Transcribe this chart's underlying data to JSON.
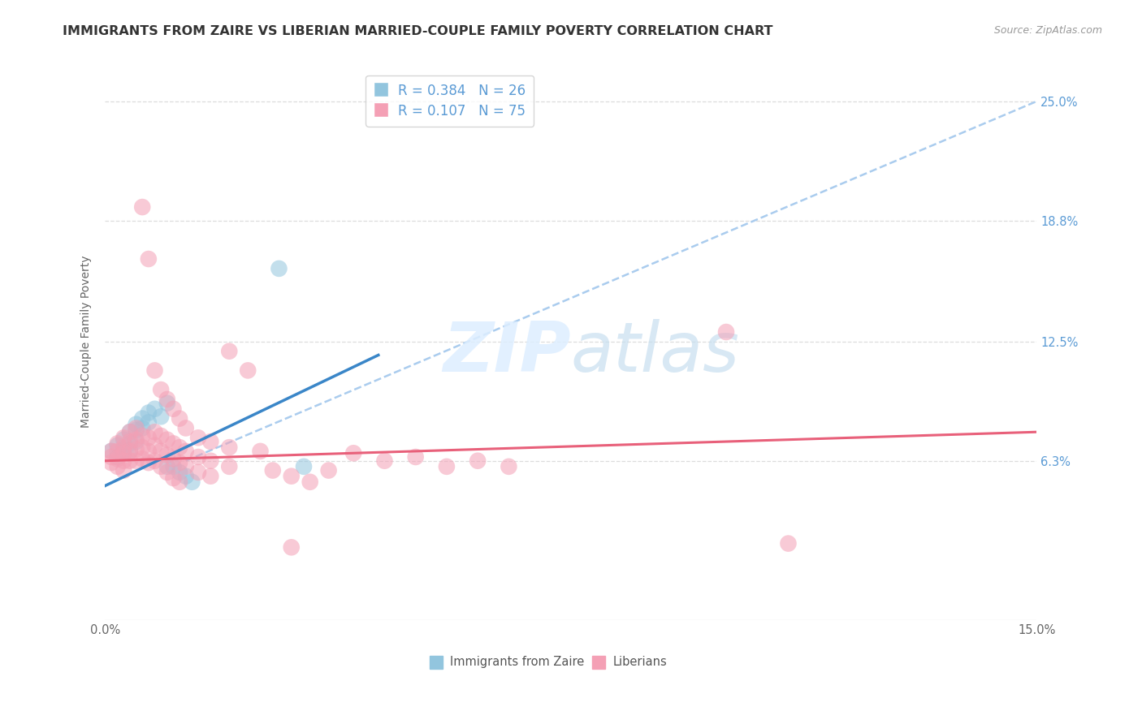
{
  "title": "IMMIGRANTS FROM ZAIRE VS LIBERIAN MARRIED-COUPLE FAMILY POVERTY CORRELATION CHART",
  "source": "Source: ZipAtlas.com",
  "ylabel": "Married-Couple Family Poverty",
  "ytick_labels": [
    "25.0%",
    "18.8%",
    "12.5%",
    "6.3%"
  ],
  "ytick_values": [
    0.25,
    0.188,
    0.125,
    0.063
  ],
  "xlim": [
    0.0,
    0.15
  ],
  "ylim": [
    -0.02,
    0.27
  ],
  "legend_r1": "R = 0.384",
  "legend_n1": "N = 26",
  "legend_r2": "R = 0.107",
  "legend_n2": "N = 75",
  "zaire_color": "#92c5de",
  "liberian_color": "#f4a0b5",
  "zaire_line_color": "#3a86c8",
  "liberian_line_color": "#e8607a",
  "dashed_line_color": "#aaccee",
  "watermark_color": "#ddeeff",
  "right_tick_color": "#5b9bd5",
  "grid_color": "#dddddd",
  "background_color": "#ffffff",
  "zaire_scatter": [
    [
      0.001,
      0.068
    ],
    [
      0.002,
      0.071
    ],
    [
      0.002,
      0.065
    ],
    [
      0.003,
      0.074
    ],
    [
      0.003,
      0.069
    ],
    [
      0.003,
      0.067
    ],
    [
      0.004,
      0.078
    ],
    [
      0.004,
      0.072
    ],
    [
      0.004,
      0.068
    ],
    [
      0.005,
      0.082
    ],
    [
      0.005,
      0.079
    ],
    [
      0.005,
      0.073
    ],
    [
      0.006,
      0.085
    ],
    [
      0.006,
      0.08
    ],
    [
      0.007,
      0.088
    ],
    [
      0.007,
      0.083
    ],
    [
      0.008,
      0.09
    ],
    [
      0.009,
      0.086
    ],
    [
      0.01,
      0.093
    ],
    [
      0.01,
      0.06
    ],
    [
      0.011,
      0.06
    ],
    [
      0.012,
      0.057
    ],
    [
      0.013,
      0.055
    ],
    [
      0.014,
      0.052
    ],
    [
      0.028,
      0.163
    ],
    [
      0.032,
      0.06
    ]
  ],
  "liberian_scatter": [
    [
      0.001,
      0.068
    ],
    [
      0.001,
      0.065
    ],
    [
      0.001,
      0.062
    ],
    [
      0.002,
      0.072
    ],
    [
      0.002,
      0.068
    ],
    [
      0.002,
      0.064
    ],
    [
      0.002,
      0.06
    ],
    [
      0.003,
      0.075
    ],
    [
      0.003,
      0.07
    ],
    [
      0.003,
      0.067
    ],
    [
      0.003,
      0.063
    ],
    [
      0.003,
      0.058
    ],
    [
      0.004,
      0.078
    ],
    [
      0.004,
      0.073
    ],
    [
      0.004,
      0.068
    ],
    [
      0.004,
      0.063
    ],
    [
      0.005,
      0.08
    ],
    [
      0.005,
      0.074
    ],
    [
      0.005,
      0.069
    ],
    [
      0.005,
      0.063
    ],
    [
      0.006,
      0.195
    ],
    [
      0.006,
      0.076
    ],
    [
      0.006,
      0.07
    ],
    [
      0.006,
      0.064
    ],
    [
      0.007,
      0.168
    ],
    [
      0.007,
      0.075
    ],
    [
      0.007,
      0.068
    ],
    [
      0.007,
      0.062
    ],
    [
      0.008,
      0.11
    ],
    [
      0.008,
      0.078
    ],
    [
      0.008,
      0.071
    ],
    [
      0.008,
      0.063
    ],
    [
      0.009,
      0.1
    ],
    [
      0.009,
      0.076
    ],
    [
      0.009,
      0.068
    ],
    [
      0.009,
      0.06
    ],
    [
      0.01,
      0.095
    ],
    [
      0.01,
      0.074
    ],
    [
      0.01,
      0.066
    ],
    [
      0.01,
      0.057
    ],
    [
      0.011,
      0.09
    ],
    [
      0.011,
      0.072
    ],
    [
      0.011,
      0.064
    ],
    [
      0.011,
      0.054
    ],
    [
      0.012,
      0.085
    ],
    [
      0.012,
      0.07
    ],
    [
      0.012,
      0.062
    ],
    [
      0.012,
      0.052
    ],
    [
      0.013,
      0.08
    ],
    [
      0.013,
      0.068
    ],
    [
      0.013,
      0.06
    ],
    [
      0.015,
      0.075
    ],
    [
      0.015,
      0.065
    ],
    [
      0.015,
      0.057
    ],
    [
      0.017,
      0.073
    ],
    [
      0.017,
      0.063
    ],
    [
      0.017,
      0.055
    ],
    [
      0.02,
      0.12
    ],
    [
      0.02,
      0.07
    ],
    [
      0.02,
      0.06
    ],
    [
      0.023,
      0.11
    ],
    [
      0.025,
      0.068
    ],
    [
      0.027,
      0.058
    ],
    [
      0.03,
      0.055
    ],
    [
      0.033,
      0.052
    ],
    [
      0.036,
      0.058
    ],
    [
      0.04,
      0.067
    ],
    [
      0.045,
      0.063
    ],
    [
      0.05,
      0.065
    ],
    [
      0.055,
      0.06
    ],
    [
      0.06,
      0.063
    ],
    [
      0.065,
      0.06
    ],
    [
      0.1,
      0.13
    ],
    [
      0.11,
      0.02
    ],
    [
      0.03,
      0.018
    ]
  ],
  "zaire_line_x": [
    0.0,
    0.044
  ],
  "zaire_line_y": [
    0.05,
    0.118
  ],
  "liberian_line_x": [
    0.0,
    0.15
  ],
  "liberian_line_y": [
    0.063,
    0.078
  ],
  "dashed_line_x": [
    0.013,
    0.15
  ],
  "dashed_line_y": [
    0.063,
    0.25
  ],
  "title_fontsize": 11.5,
  "axis_label_fontsize": 10,
  "tick_fontsize": 10.5,
  "legend_fontsize": 12
}
